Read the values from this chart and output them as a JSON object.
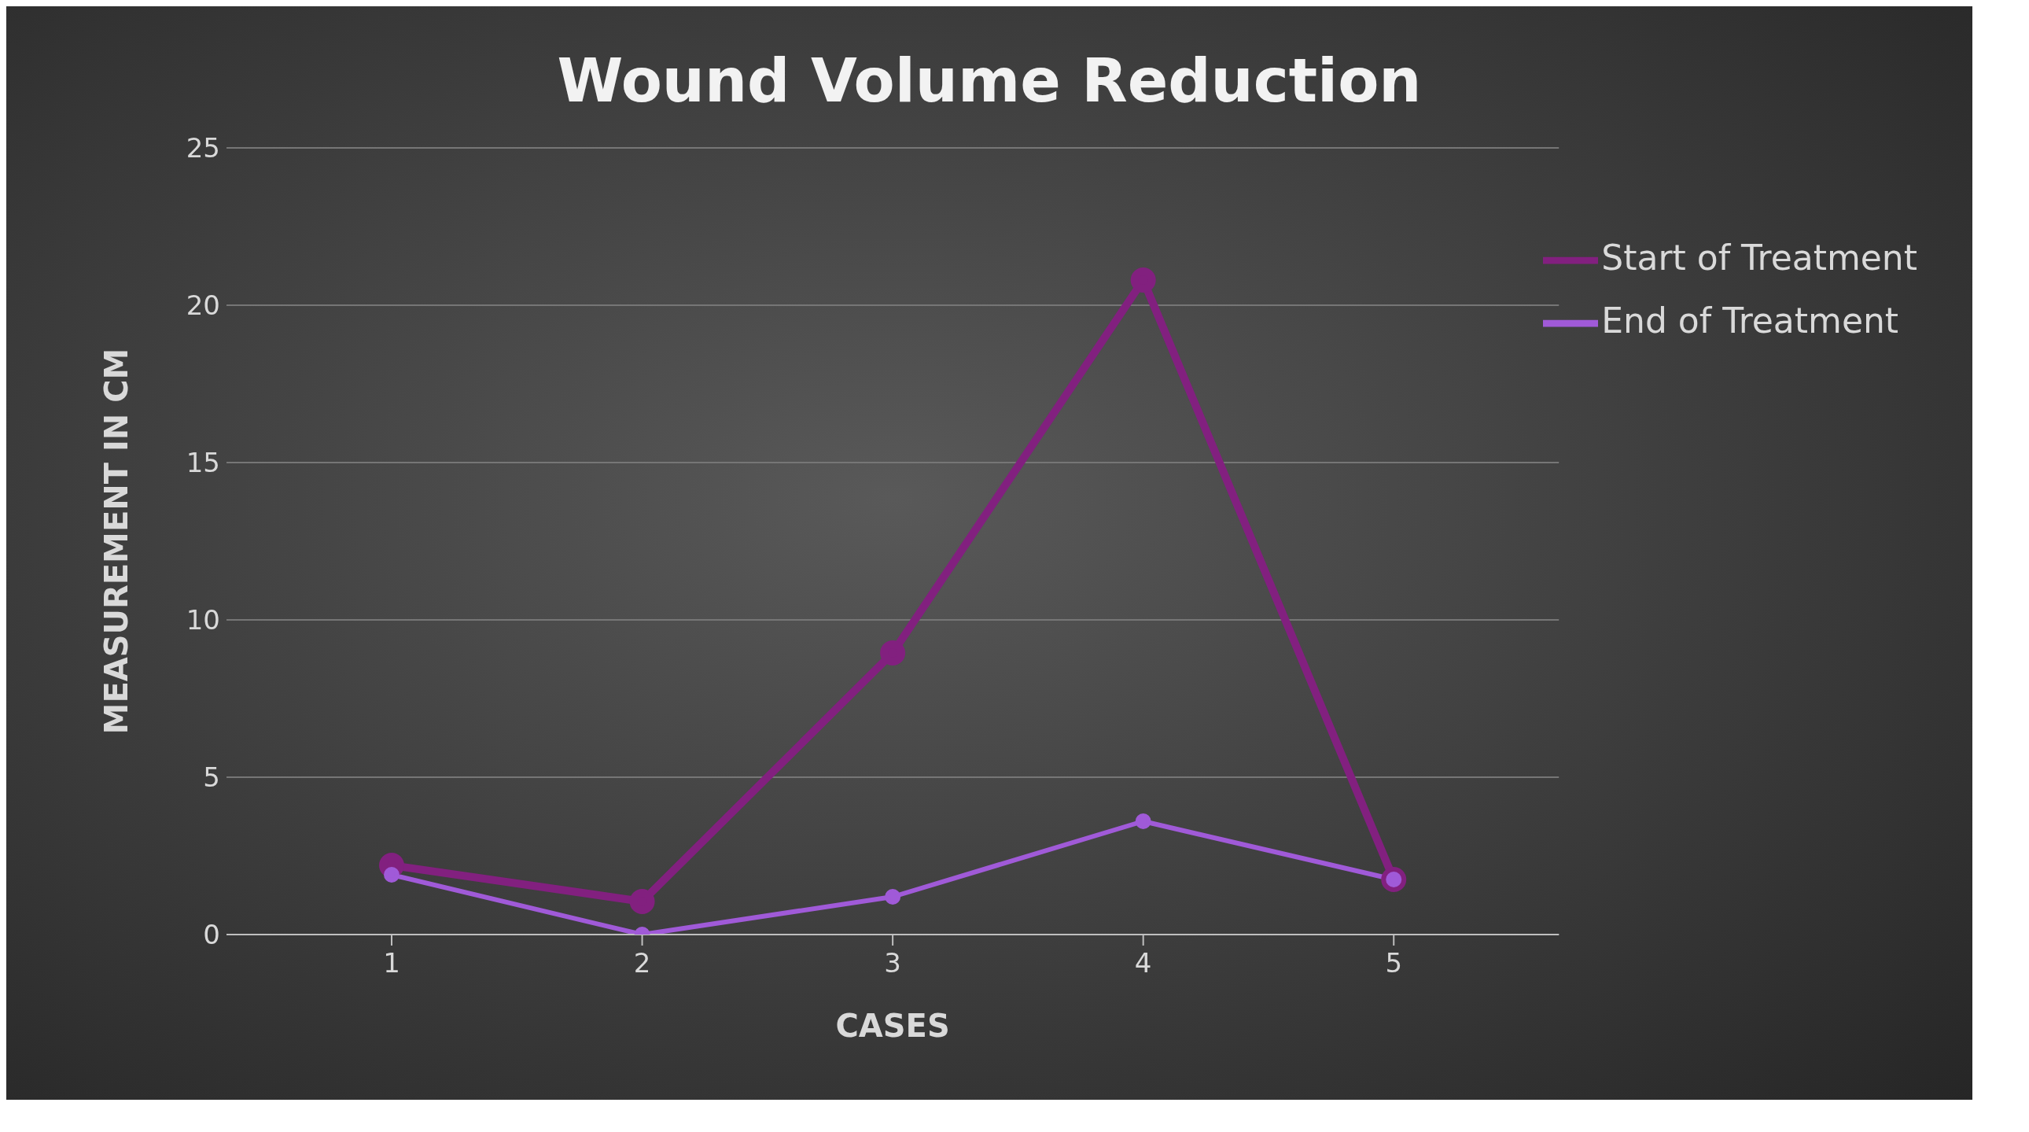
{
  "chart_data": {
    "type": "line",
    "title": "Wound Volume Reduction",
    "xlabel": "CASES",
    "ylabel": "MEASUREMENT IN CM",
    "categories": [
      "1",
      "2",
      "3",
      "4",
      "5"
    ],
    "series": [
      {
        "name": "Start of Treatment",
        "color": "#82207f",
        "values": [
          2.2,
          1.05,
          8.95,
          20.8,
          1.75
        ]
      },
      {
        "name": "End of Treatment",
        "color": "#a05ad8",
        "values": [
          1.9,
          0,
          1.2,
          3.6,
          1.75
        ]
      }
    ],
    "ylim": [
      0,
      25
    ],
    "yticks": [
      0,
      5,
      10,
      15,
      20,
      25
    ],
    "grid": "y",
    "legend": "top right",
    "marker": "circle",
    "line_style": "solid"
  }
}
